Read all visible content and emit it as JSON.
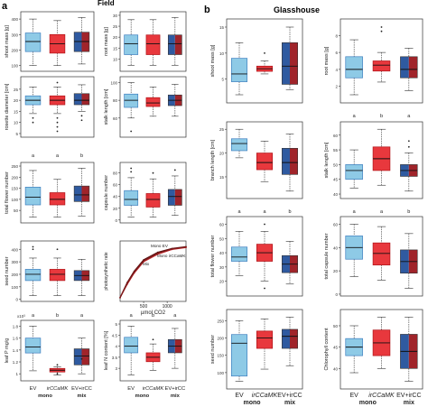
{
  "figure": {
    "panel_a_letter": "a",
    "panel_a_title": "Field",
    "panel_b_letter": "b",
    "panel_b_title": "Glasshouse"
  },
  "colors": {
    "ev": "#8ecae6",
    "ev_dark": "#3f7fbf",
    "ir": "#e8383d",
    "ir_dark": "#b01217",
    "mix_left": "#2f5aa0",
    "mix_right": "#a0242a"
  },
  "x_axis": {
    "categories": [
      "EV",
      "irCCaMK",
      "EV+irCC"
    ],
    "groups": [
      "mono",
      "mono",
      "mix"
    ]
  },
  "chart_data": [
    {
      "type": "box",
      "panel": "a",
      "ylabel": "shoot mass [g]",
      "letters": [
        "",
        "",
        ""
      ],
      "boxes": [
        {
          "category": "EV",
          "whisker_low": 100,
          "q1": 190,
          "median": 255,
          "q3": 310,
          "whisker_high": 400,
          "outliers": []
        },
        {
          "category": "irCCaMK",
          "whisker_low": 100,
          "q1": 180,
          "median": 240,
          "q3": 300,
          "whisker_high": 390,
          "outliers": []
        },
        {
          "category": "EV+irCC",
          "whisker_low": 110,
          "q1": 190,
          "median": 255,
          "q3": 315,
          "whisker_high": 410,
          "outliers": []
        }
      ]
    },
    {
      "type": "box",
      "panel": "a",
      "ylabel": "root mass [g]",
      "letters": [
        "",
        "",
        ""
      ],
      "boxes": [
        {
          "category": "EV",
          "whisker_low": 7,
          "q1": 12,
          "median": 17,
          "q3": 21,
          "whisker_high": 28,
          "outliers": []
        },
        {
          "category": "irCCaMK",
          "whisker_low": 7,
          "q1": 12,
          "median": 17,
          "q3": 21,
          "whisker_high": 28,
          "outliers": []
        },
        {
          "category": "EV+irCC",
          "whisker_low": 7,
          "q1": 12,
          "median": 17,
          "q3": 21,
          "whisker_high": 29,
          "outliers": []
        }
      ]
    },
    {
      "type": "box",
      "panel": "a",
      "ylabel": "rosette diameter [cm]",
      "letters": [
        "",
        "",
        ""
      ],
      "boxes": [
        {
          "category": "EV",
          "whisker_low": 14,
          "q1": 18,
          "median": 20,
          "q3": 22,
          "whisker_high": 26,
          "outliers": [
            10,
            12
          ]
        },
        {
          "category": "irCCaMK",
          "whisker_low": 14,
          "q1": 18,
          "median": 20,
          "q3": 22,
          "whisker_high": 26,
          "outliers": [
            6,
            8,
            10,
            12,
            28
          ]
        },
        {
          "category": "EV+irCC",
          "whisker_low": 15,
          "q1": 18,
          "median": 20,
          "q3": 23,
          "whisker_high": 27,
          "outliers": [
            11,
            13
          ]
        }
      ]
    },
    {
      "type": "box",
      "panel": "a",
      "ylabel": "stalk length [cm]",
      "letters": [
        "",
        "",
        ""
      ],
      "boxes": [
        {
          "category": "EV",
          "whisker_low": 60,
          "q1": 72,
          "median": 80,
          "q3": 87,
          "whisker_high": 100,
          "outliers": [
            45
          ]
        },
        {
          "category": "irCCaMK",
          "whisker_low": 62,
          "q1": 73,
          "median": 77,
          "q3": 83,
          "whisker_high": 95,
          "outliers": []
        },
        {
          "category": "EV+irCC",
          "whisker_low": 62,
          "q1": 74,
          "median": 80,
          "q3": 86,
          "whisker_high": 98,
          "outliers": []
        }
      ]
    },
    {
      "type": "box",
      "panel": "a",
      "ylabel": "total flower number",
      "letters": [
        "a",
        "a",
        "b"
      ],
      "boxes": [
        {
          "category": "EV",
          "whisker_low": 20,
          "q1": 75,
          "median": 110,
          "q3": 155,
          "whisker_high": 230,
          "outliers": []
        },
        {
          "category": "irCCaMK",
          "whisker_low": 20,
          "q1": 75,
          "median": 100,
          "q3": 130,
          "whisker_high": 190,
          "outliers": []
        },
        {
          "category": "EV+irCC",
          "whisker_low": 25,
          "q1": 90,
          "median": 120,
          "q3": 160,
          "whisker_high": 240,
          "outliers": []
        }
      ]
    },
    {
      "type": "box",
      "panel": "a",
      "ylabel": "capsule number",
      "letters": [
        "",
        "",
        ""
      ],
      "boxes": [
        {
          "category": "EV",
          "whisker_low": 5,
          "q1": 25,
          "median": 35,
          "q3": 50,
          "whisker_high": 72,
          "outliers": [
            82,
            88
          ]
        },
        {
          "category": "irCCaMK",
          "whisker_low": 5,
          "q1": 22,
          "median": 35,
          "q3": 45,
          "whisker_high": 70,
          "outliers": [
            80
          ]
        },
        {
          "category": "EV+irCC",
          "whisker_low": 8,
          "q1": 25,
          "median": 40,
          "q3": 52,
          "whisker_high": 75,
          "outliers": [
            85
          ]
        }
      ]
    },
    {
      "type": "box",
      "panel": "a",
      "ylabel": "seed number",
      "letters": [
        "",
        "",
        ""
      ],
      "boxes": [
        {
          "category": "EV",
          "whisker_low": 30,
          "q1": 150,
          "median": 200,
          "q3": 240,
          "whisker_high": 330,
          "outliers": [
            400,
            420
          ]
        },
        {
          "category": "irCCaMK",
          "whisker_low": 30,
          "q1": 150,
          "median": 200,
          "q3": 240,
          "whisker_high": 330,
          "outliers": [
            400
          ]
        },
        {
          "category": "EV+irCC",
          "whisker_low": 30,
          "q1": 150,
          "median": 190,
          "q3": 230,
          "whisker_high": 320,
          "outliers": []
        }
      ]
    },
    {
      "type": "line",
      "panel": "a",
      "xlabel": "µmol CO2",
      "ylabel": "photosynthetic rate",
      "series": [
        {
          "name": "Mono EV",
          "x": [
            0,
            150,
            300,
            500,
            800,
            1100,
            1400
          ],
          "y": [
            0,
            8,
            14,
            20,
            24,
            26,
            27
          ]
        },
        {
          "name": "Mono irCCaMK",
          "x": [
            0,
            150,
            300,
            500,
            800,
            1100,
            1400
          ],
          "y": [
            0,
            7,
            13,
            19,
            23,
            25.5,
            26.5
          ]
        },
        {
          "name": "Mix",
          "x": [
            0,
            150,
            300,
            500,
            800,
            1100,
            1400
          ],
          "y": [
            0,
            7.5,
            13.5,
            19.5,
            23.5,
            25.8,
            26.8
          ]
        }
      ],
      "xlim": [
        0,
        1400
      ],
      "ylim": [
        -2,
        30
      ],
      "xticks": [
        500,
        1000
      ],
      "x_tick_labels": [
        "500",
        "1000"
      ]
    },
    {
      "type": "box",
      "panel": "a",
      "ylabel": "leaf P mg/g",
      "axis_multiplier": "x10³",
      "letters": [
        "a",
        "b",
        "a"
      ],
      "boxes": [
        {
          "category": "EV",
          "whisker_low": 1.05,
          "q1": 1.35,
          "median": 1.45,
          "q3": 1.6,
          "whisker_high": 1.8,
          "outliers": []
        },
        {
          "category": "irCCaMK",
          "whisker_low": 0.98,
          "q1": 1.03,
          "median": 1.06,
          "q3": 1.09,
          "whisker_high": 1.12,
          "outliers": [
            1.15,
            1.0
          ]
        },
        {
          "category": "EV+irCC",
          "whisker_low": 1.0,
          "q1": 1.15,
          "median": 1.3,
          "q3": 1.42,
          "whisker_high": 1.6,
          "outliers": [
            1.25
          ]
        }
      ]
    },
    {
      "type": "box",
      "panel": "a",
      "ylabel": "leaf N content [%]",
      "letters": [
        "a",
        "b",
        "a"
      ],
      "boxes": [
        {
          "category": "EV",
          "whisker_low": 2.7,
          "q1": 3.7,
          "median": 4.0,
          "q3": 4.4,
          "whisker_high": 4.9,
          "outliers": []
        },
        {
          "category": "irCCaMK",
          "whisker_low": 2.9,
          "q1": 3.3,
          "median": 3.5,
          "q3": 3.7,
          "whisker_high": 4.1,
          "outliers": [
            4.3
          ]
        },
        {
          "category": "EV+irCC",
          "whisker_low": 3.0,
          "q1": 3.7,
          "median": 4.0,
          "q3": 4.3,
          "whisker_high": 4.8,
          "outliers": []
        }
      ]
    },
    {
      "type": "box",
      "panel": "b",
      "ylabel": "shoot mass [g]",
      "letters": [
        "",
        "",
        ""
      ],
      "boxes": [
        {
          "category": "EV",
          "whisker_low": 2,
          "q1": 4.5,
          "median": 6,
          "q3": 9,
          "whisker_high": 12,
          "outliers": []
        },
        {
          "category": "irCCaMK",
          "whisker_low": 6,
          "q1": 6.5,
          "median": 7,
          "q3": 7.5,
          "whisker_high": 8.5,
          "outliers": [
            10
          ]
        },
        {
          "category": "EV+irCC",
          "whisker_low": 3,
          "q1": 4,
          "median": 7.5,
          "q3": 12,
          "whisker_high": 15,
          "outliers": []
        }
      ]
    },
    {
      "type": "box",
      "panel": "b",
      "ylabel": "root mass [g]",
      "letters": [
        "",
        "",
        ""
      ],
      "boxes": [
        {
          "category": "EV",
          "whisker_low": 1,
          "q1": 3,
          "median": 4,
          "q3": 5.5,
          "whisker_high": 7.5,
          "outliers": []
        },
        {
          "category": "irCCaMK",
          "whisker_low": 2.5,
          "q1": 3.8,
          "median": 4.5,
          "q3": 5,
          "whisker_high": 6,
          "outliers": [
            8.5,
            9
          ]
        },
        {
          "category": "EV+irCC",
          "whisker_low": 1.5,
          "q1": 3,
          "median": 4,
          "q3": 5.5,
          "whisker_high": 6.5,
          "outliers": []
        }
      ]
    },
    {
      "type": "box",
      "panel": "b",
      "ylabel": "branch length [cm]",
      "letters": [
        "",
        "",
        ""
      ],
      "boxes": [
        {
          "category": "EV",
          "whisker_low": 19,
          "q1": 20.5,
          "median": 22,
          "q3": 23,
          "whisker_high": 25,
          "outliers": []
        },
        {
          "category": "irCCaMK",
          "whisker_low": 14,
          "q1": 16.5,
          "median": 18,
          "q3": 20,
          "whisker_high": 22.5,
          "outliers": []
        },
        {
          "category": "EV+irCC",
          "whisker_low": 12,
          "q1": 15.5,
          "median": 18,
          "q3": 21,
          "whisker_high": 24,
          "outliers": []
        }
      ]
    },
    {
      "type": "box",
      "panel": "b",
      "ylabel": "stalk length [cm]",
      "letters": [
        "a",
        "b",
        "a"
      ],
      "boxes": [
        {
          "category": "EV",
          "whisker_low": 42,
          "q1": 45,
          "median": 48,
          "q3": 50,
          "whisker_high": 55,
          "outliers": []
        },
        {
          "category": "irCCaMK",
          "whisker_low": 43,
          "q1": 48,
          "median": 52,
          "q3": 56,
          "whisker_high": 62,
          "outliers": []
        },
        {
          "category": "EV+irCC",
          "whisker_low": 41,
          "q1": 46,
          "median": 48,
          "q3": 50,
          "whisker_high": 54,
          "outliers": [
            56,
            58
          ]
        }
      ]
    },
    {
      "type": "box",
      "panel": "b",
      "ylabel": "total flower number",
      "letters": [
        "a",
        "a",
        "b"
      ],
      "boxes": [
        {
          "category": "EV",
          "whisker_low": 24,
          "q1": 34,
          "median": 37,
          "q3": 44,
          "whisker_high": 55,
          "outliers": []
        },
        {
          "category": "irCCaMK",
          "whisker_low": 20,
          "q1": 34,
          "median": 40,
          "q3": 46,
          "whisker_high": 55,
          "outliers": [
            15,
            60
          ]
        },
        {
          "category": "EV+irCC",
          "whisker_low": 18,
          "q1": 26,
          "median": 32,
          "q3": 38,
          "whisker_high": 48,
          "outliers": []
        }
      ]
    },
    {
      "type": "box",
      "panel": "b",
      "ylabel": "total capsule number",
      "letters": [
        "a",
        "a",
        "b"
      ],
      "boxes": [
        {
          "category": "EV",
          "whisker_low": 15,
          "q1": 30,
          "median": 40,
          "q3": 50,
          "whisker_high": 60,
          "outliers": []
        },
        {
          "category": "irCCaMK",
          "whisker_low": 12,
          "q1": 25,
          "median": 35,
          "q3": 44,
          "whisker_high": 58,
          "outliers": []
        },
        {
          "category": "EV+irCC",
          "whisker_low": 5,
          "q1": 18,
          "median": 28,
          "q3": 38,
          "whisker_high": 52,
          "outliers": []
        }
      ]
    },
    {
      "type": "box",
      "panel": "b",
      "ylabel": "seed number",
      "letters": [
        "",
        "",
        ""
      ],
      "boxes": [
        {
          "category": "EV",
          "whisker_low": 75,
          "q1": 90,
          "median": 185,
          "q3": 210,
          "whisker_high": 250,
          "outliers": []
        },
        {
          "category": "irCCaMK",
          "whisker_low": 110,
          "q1": 170,
          "median": 200,
          "q3": 220,
          "whisker_high": 255,
          "outliers": []
        },
        {
          "category": "EV+irCC",
          "whisker_low": 120,
          "q1": 170,
          "median": 205,
          "q3": 225,
          "whisker_high": 260,
          "outliers": []
        }
      ]
    },
    {
      "type": "box",
      "panel": "b",
      "ylabel": "Chlorophyll content",
      "letters": [
        "",
        "",
        ""
      ],
      "boxes": [
        {
          "category": "EV",
          "whisker_low": 39,
          "q1": 43,
          "median": 45,
          "q3": 47,
          "whisker_high": 50,
          "outliers": []
        },
        {
          "category": "irCCaMK",
          "whisker_low": 40,
          "q1": 43,
          "median": 46,
          "q3": 49,
          "whisker_high": 52,
          "outliers": []
        },
        {
          "category": "EV+irCC",
          "whisker_low": 37,
          "q1": 40,
          "median": 44,
          "q3": 48,
          "whisker_high": 52,
          "outliers": []
        }
      ]
    }
  ]
}
